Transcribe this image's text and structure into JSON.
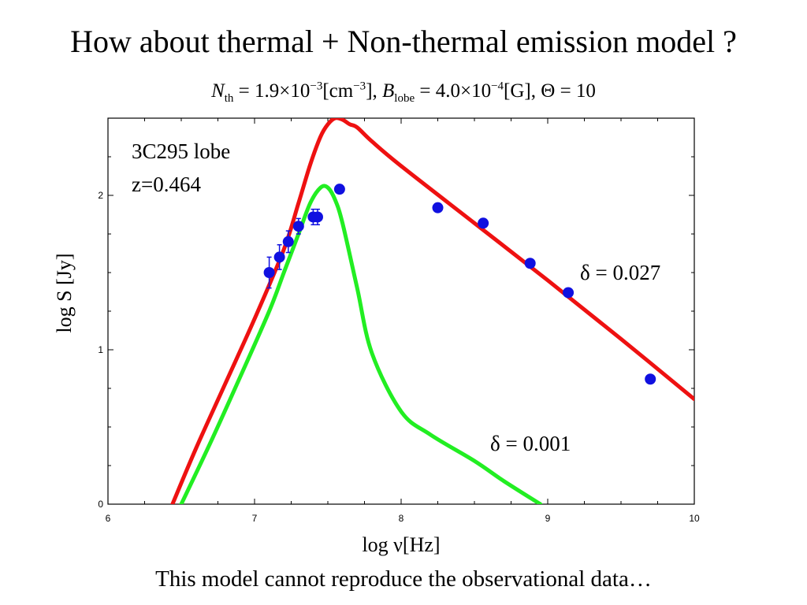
{
  "slide": {
    "title": "How about thermal + Non-thermal emission model ?",
    "params": {
      "n_label": "N",
      "n_sub": "th",
      "n_value": " = 1.9×10",
      "n_exp": "−3",
      "n_unit": "[cm",
      "n_unit_exp": "−3",
      "n_unit_close": "], ",
      "b_label": "B",
      "b_sub": "lobe",
      "b_value": " = 4.0×10",
      "b_exp": "−4",
      "b_unit": "[G], ",
      "theta": "Θ = 10"
    },
    "caption": "This model cannot reproduce the observational data…"
  },
  "chart_data": {
    "type": "line",
    "xlabel": "log ν[Hz]",
    "ylabel": "log S [Jy]",
    "xlim": [
      6,
      10
    ],
    "ylim": [
      0,
      2.5
    ],
    "x_ticks": [
      "6",
      "7",
      "8",
      "9",
      "10"
    ],
    "y_ticks": [
      "0",
      "1",
      "2"
    ],
    "annotations": {
      "source_name": "3C295 lobe",
      "redshift": "z=0.464",
      "red_label": "δ = 0.027",
      "green_label": "δ = 0.001"
    },
    "series": [
      {
        "color": "#ee1111",
        "label_key": "red_label",
        "x": [
          6.44,
          6.6,
          6.8,
          7.0,
          7.2,
          7.3,
          7.38,
          7.45,
          7.5,
          7.55,
          7.6,
          7.65,
          7.7,
          7.8,
          8.0,
          8.5,
          9.0,
          9.5,
          10.0
        ],
        "y": [
          0.0,
          0.36,
          0.78,
          1.2,
          1.65,
          1.95,
          2.2,
          2.38,
          2.46,
          2.5,
          2.49,
          2.46,
          2.44,
          2.35,
          2.19,
          1.82,
          1.45,
          1.07,
          0.68
        ]
      },
      {
        "color": "#22ee22",
        "label_key": "green_label",
        "x": [
          6.5,
          6.7,
          6.9,
          7.1,
          7.2,
          7.3,
          7.38,
          7.45,
          7.5,
          7.55,
          7.6,
          7.7,
          7.8,
          8.0,
          8.2,
          8.5,
          8.7,
          8.95
        ],
        "y": [
          0.0,
          0.4,
          0.82,
          1.25,
          1.5,
          1.75,
          1.95,
          2.05,
          2.05,
          1.97,
          1.82,
          1.4,
          0.98,
          0.6,
          0.45,
          0.28,
          0.15,
          0.0
        ]
      }
    ],
    "observations": {
      "color": "#1010e0",
      "points": [
        {
          "x": 7.1,
          "y": 1.5,
          "err": 0.1
        },
        {
          "x": 7.17,
          "y": 1.6,
          "err": 0.08
        },
        {
          "x": 7.23,
          "y": 1.7,
          "err": 0.07
        },
        {
          "x": 7.3,
          "y": 1.8,
          "err": 0.05
        },
        {
          "x": 7.4,
          "y": 1.86,
          "err": 0.05
        },
        {
          "x": 7.43,
          "y": 1.86,
          "err": 0.05
        },
        {
          "x": 7.58,
          "y": 2.04,
          "err": 0
        },
        {
          "x": 8.25,
          "y": 1.92,
          "err": 0
        },
        {
          "x": 8.56,
          "y": 1.82,
          "err": 0
        },
        {
          "x": 8.88,
          "y": 1.56,
          "err": 0
        },
        {
          "x": 9.14,
          "y": 1.37,
          "err": 0
        },
        {
          "x": 9.7,
          "y": 0.81,
          "err": 0
        }
      ]
    }
  }
}
